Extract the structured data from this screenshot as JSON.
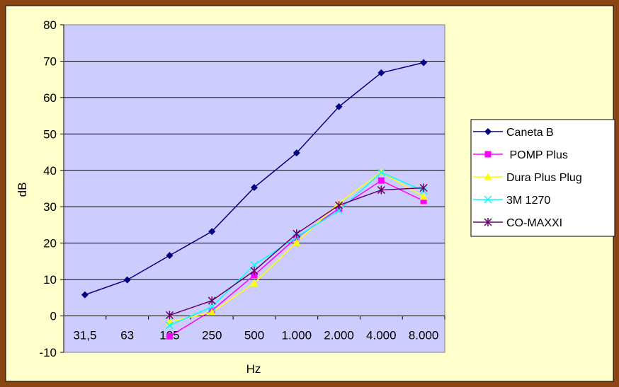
{
  "chart_data": {
    "type": "line",
    "categories": [
      "31,5",
      "63",
      "125",
      "250",
      "500",
      "1.000",
      "2.000",
      "4.000",
      "8.000"
    ],
    "xlabel": "Hz",
    "ylabel": "dB",
    "ylim": [
      -10,
      80
    ],
    "yticks": [
      -10,
      0,
      10,
      20,
      30,
      40,
      50,
      60,
      70,
      80
    ],
    "grid": true,
    "legend_position": "right",
    "colors": {
      "outer_frame": "#8B4513",
      "chart_area": "#FFFFCC",
      "plot_area": "#CCCCFF",
      "gridline": "#000000"
    },
    "series": [
      {
        "name": "Caneta B",
        "color": "#000080",
        "marker": "diamond",
        "values": [
          5.8,
          9.9,
          16.6,
          23.2,
          35.3,
          44.8,
          57.5,
          66.8,
          69.6
        ]
      },
      {
        "name": " POMP Plus",
        "color": "#FF00FF",
        "marker": "square",
        "values": [
          null,
          null,
          -5.6,
          1.5,
          11.2,
          21.5,
          29.5,
          37.2,
          31.6
        ]
      },
      {
        "name": "Dura Plus Plug",
        "color": "#FFFF00",
        "marker": "triangle",
        "values": [
          null,
          null,
          -1.6,
          1.0,
          9.0,
          20.2,
          31.0,
          39.5,
          32.8
        ]
      },
      {
        "name": "3M 1270",
        "color": "#00FFFF",
        "marker": "x",
        "values": [
          null,
          null,
          -2.6,
          2.5,
          14.0,
          21.7,
          29.0,
          39.4,
          34.4
        ]
      },
      {
        "name": "CO-MAXXI",
        "color": "#660066",
        "marker": "star",
        "values": [
          null,
          null,
          0.2,
          4.2,
          12.4,
          22.6,
          30.4,
          34.6,
          35.2
        ]
      }
    ]
  }
}
